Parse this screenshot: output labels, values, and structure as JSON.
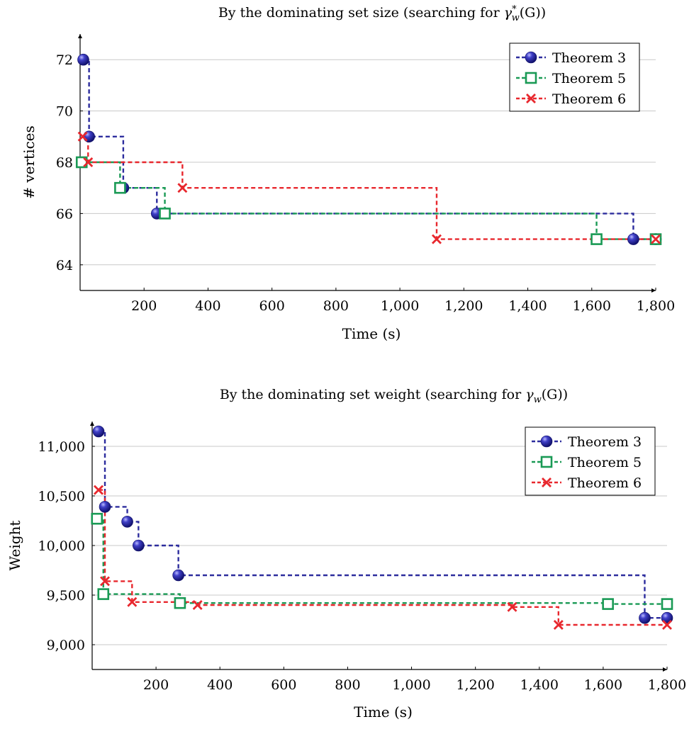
{
  "chart_data": [
    {
      "type": "line",
      "title": "By the dominating set size (searching for γ*_w(G))",
      "title_parts": [
        "By the dominating set size (searching for ",
        "γ",
        "w",
        "*",
        "(G))"
      ],
      "xlabel": "Time (s)",
      "ylabel": "# vertices",
      "xlim": [
        0,
        1800
      ],
      "ylim": [
        63,
        73
      ],
      "xticks": [
        200,
        400,
        600,
        800,
        1000,
        1200,
        1400,
        1600,
        1800
      ],
      "xtick_labels": [
        "200",
        "400",
        "600",
        "800",
        "1,000",
        "1,200",
        "1,400",
        "1,600",
        "1,800"
      ],
      "yticks": [
        64,
        66,
        68,
        70,
        72
      ],
      "ytick_labels": [
        "64",
        "66",
        "68",
        "70",
        "72"
      ],
      "grid": "horizontal",
      "legend_position": "top-right",
      "series": [
        {
          "name": "Theorem 3",
          "marker": "ball",
          "color": "#2d2d9e",
          "x": [
            10,
            28,
            135,
            240,
            1730,
            1800
          ],
          "y": [
            72,
            69,
            67,
            66,
            65,
            65
          ]
        },
        {
          "name": "Theorem 5",
          "marker": "square",
          "color": "#1a9a55",
          "x": [
            5,
            125,
            265,
            1615,
            1800
          ],
          "y": [
            68,
            67,
            66,
            65,
            65
          ]
        },
        {
          "name": "Theorem 6",
          "marker": "cross",
          "color": "#e8282e",
          "x": [
            8,
            25,
            320,
            1115,
            1800
          ],
          "y": [
            69,
            68,
            67,
            65,
            65
          ]
        }
      ]
    },
    {
      "type": "line",
      "title": "By the dominating set weight (searching for γ_w(G))",
      "title_parts": [
        "By the dominating set weight (searching for ",
        "γ",
        "w",
        "",
        "(G))"
      ],
      "xlabel": "Time (s)",
      "ylabel": "Weight",
      "xlim": [
        0,
        1800
      ],
      "ylim": [
        8750,
        11250
      ],
      "xticks": [
        200,
        400,
        600,
        800,
        1000,
        1200,
        1400,
        1600,
        1800
      ],
      "xtick_labels": [
        "200",
        "400",
        "600",
        "800",
        "1,000",
        "1,200",
        "1,400",
        "1,600",
        "1,800"
      ],
      "yticks": [
        9000,
        9500,
        10000,
        10500,
        11000
      ],
      "ytick_labels": [
        "9,000",
        "9,500",
        "10,000",
        "10,500",
        "11,000"
      ],
      "grid": "horizontal",
      "legend_position": "top-right",
      "series": [
        {
          "name": "Theorem 3",
          "marker": "ball",
          "color": "#2d2d9e",
          "x": [
            20,
            40,
            110,
            145,
            270,
            1730,
            1800
          ],
          "y": [
            11150,
            10390,
            10240,
            10000,
            9700,
            9270,
            9270
          ]
        },
        {
          "name": "Theorem 5",
          "marker": "square",
          "color": "#1a9a55",
          "x": [
            15,
            35,
            275,
            1615,
            1800
          ],
          "y": [
            10270,
            9510,
            9420,
            9410,
            9410
          ]
        },
        {
          "name": "Theorem 6",
          "marker": "cross",
          "color": "#e8282e",
          "x": [
            20,
            40,
            125,
            330,
            1315,
            1460,
            1800
          ],
          "y": [
            10560,
            9640,
            9430,
            9400,
            9380,
            9200,
            9200
          ]
        }
      ]
    }
  ]
}
